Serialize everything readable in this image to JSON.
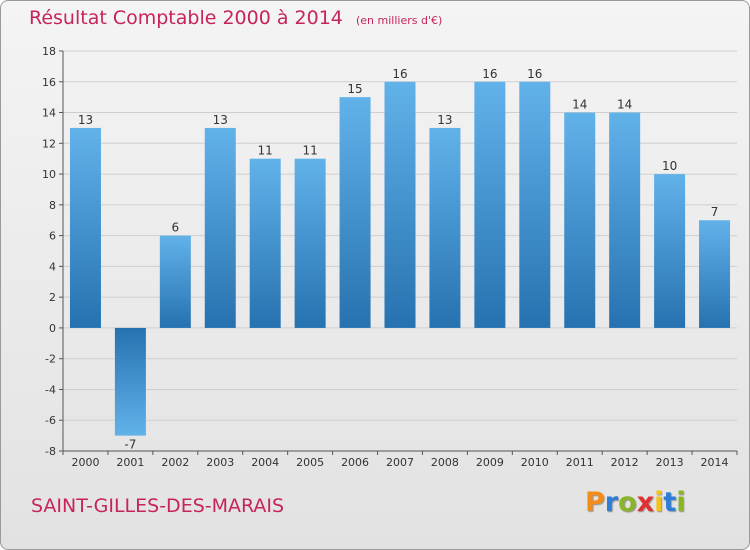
{
  "header": {
    "title": "Résultat Comptable 2000 à 2014",
    "subtitle": "(en milliers d'€)"
  },
  "footer": {
    "commune": "SAINT-GILLES-DES-MARAIS",
    "brand": "Proxiti",
    "brand_colors": [
      "#f28c1a",
      "#2e7dd6",
      "#8ab42a",
      "#e0312e",
      "#f2c21a",
      "#2e7dd6",
      "#8ab42a"
    ]
  },
  "colors": {
    "title": "#c6245a",
    "bar_top": "#62b2ea",
    "bar_bottom": "#2672b0",
    "grid": "#cfcfcf"
  },
  "chart_data": {
    "type": "bar",
    "title": "Résultat Comptable 2000 à 2014",
    "subtitle": "(en milliers d'€)",
    "categories": [
      "2000",
      "2001",
      "2002",
      "2003",
      "2004",
      "2005",
      "2006",
      "2007",
      "2008",
      "2009",
      "2010",
      "2011",
      "2012",
      "2013",
      "2014"
    ],
    "values": [
      13,
      -7,
      6,
      13,
      11,
      11,
      15,
      16,
      13,
      16,
      16,
      14,
      14,
      10,
      7
    ],
    "ylim": [
      -8,
      18
    ],
    "yticks": [
      -8,
      -6,
      -4,
      -2,
      0,
      2,
      4,
      6,
      8,
      10,
      12,
      14,
      16,
      18
    ],
    "grid": true,
    "legend": "none"
  }
}
